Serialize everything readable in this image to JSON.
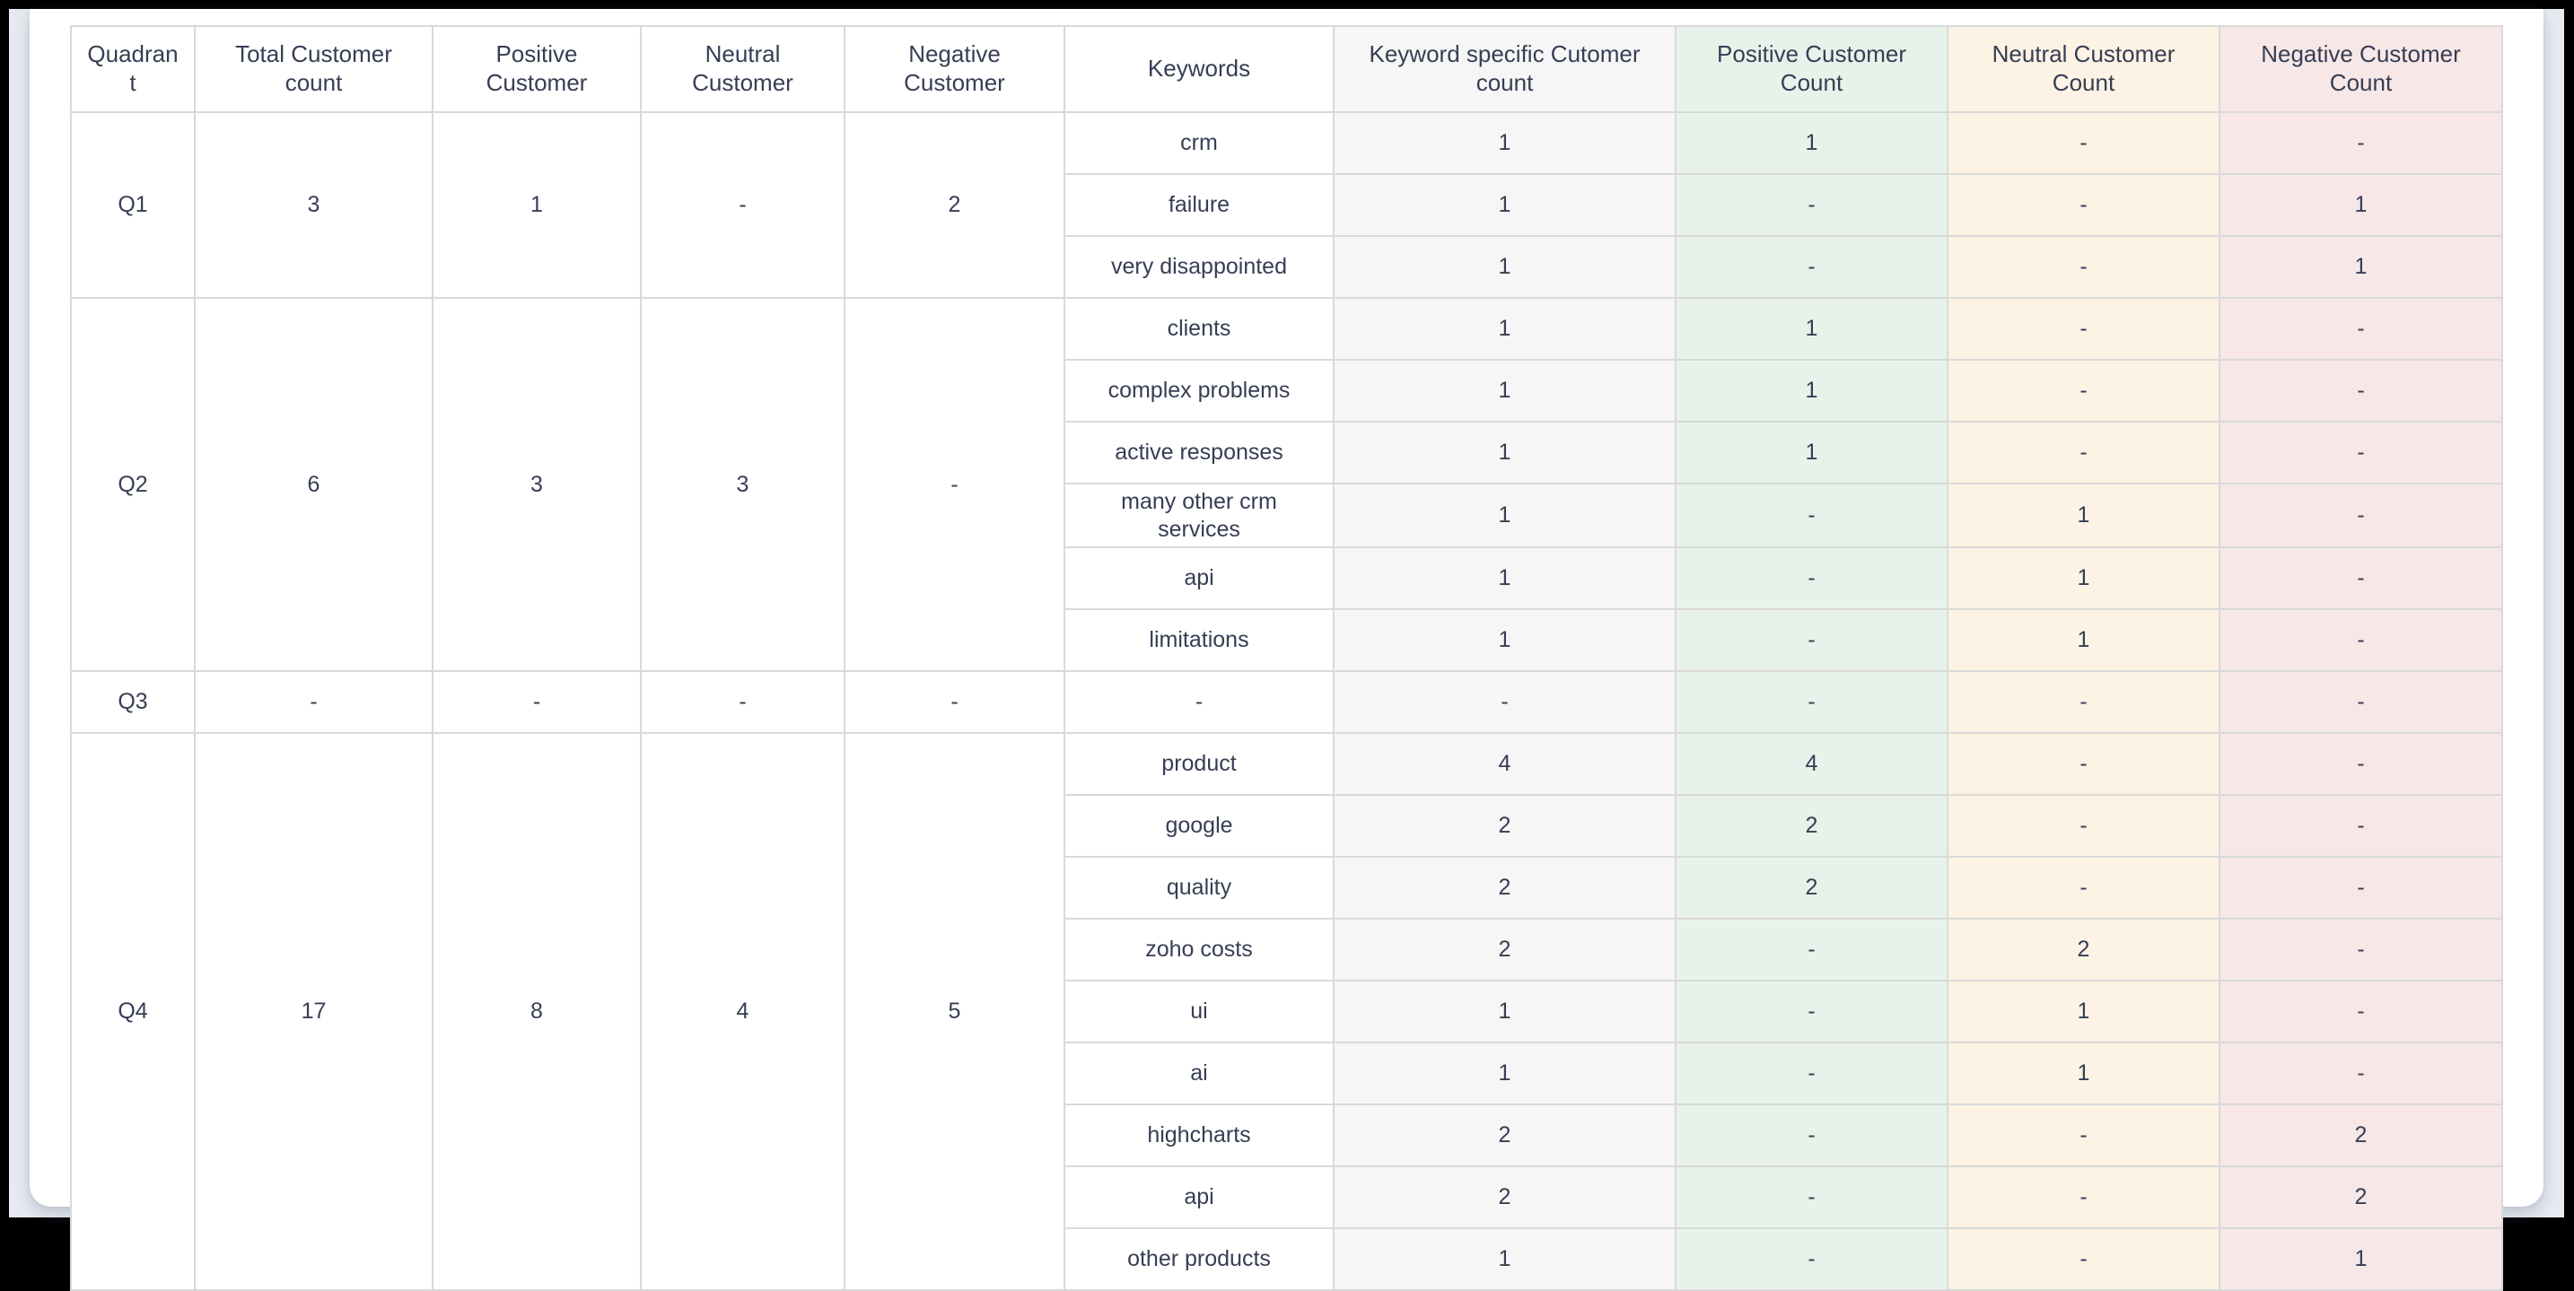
{
  "table": {
    "columns": [
      "Quadrant",
      "Total Customer count",
      "Positive Customer",
      "Neutral Customer",
      "Negative Customer",
      "Keywords",
      "Keyword specific Cutomer count",
      "Positive Customer Count",
      "Neutral Customer Count",
      "Negative Customer Count"
    ],
    "colors": {
      "keyword_count_bg": "#f6f6f6",
      "positive_bg": "#e7f3ea",
      "neutral_bg": "#fcf3e4",
      "negative_bg": "#f8e7e7",
      "text": "#363e54",
      "border": "#d9d9d9"
    },
    "quadrants": [
      {
        "quadrant": "Q1",
        "total": "3",
        "positive": "1",
        "neutral": "-",
        "negative": "2",
        "keywords": [
          {
            "keyword": "crm",
            "count": "1",
            "positive": "1",
            "neutral": "-",
            "negative": "-"
          },
          {
            "keyword": "failure",
            "count": "1",
            "positive": "-",
            "neutral": "-",
            "negative": "1"
          },
          {
            "keyword": "very disappointed",
            "count": "1",
            "positive": "-",
            "neutral": "-",
            "negative": "1"
          }
        ]
      },
      {
        "quadrant": "Q2",
        "total": "6",
        "positive": "3",
        "neutral": "3",
        "negative": "-",
        "keywords": [
          {
            "keyword": "clients",
            "count": "1",
            "positive": "1",
            "neutral": "-",
            "negative": "-"
          },
          {
            "keyword": "complex problems",
            "count": "1",
            "positive": "1",
            "neutral": "-",
            "negative": "-"
          },
          {
            "keyword": "active responses",
            "count": "1",
            "positive": "1",
            "neutral": "-",
            "negative": "-"
          },
          {
            "keyword": "many other crm services",
            "count": "1",
            "positive": "-",
            "neutral": "1",
            "negative": "-"
          },
          {
            "keyword": "api",
            "count": "1",
            "positive": "-",
            "neutral": "1",
            "negative": "-"
          },
          {
            "keyword": "limitations",
            "count": "1",
            "positive": "-",
            "neutral": "1",
            "negative": "-"
          }
        ]
      },
      {
        "quadrant": "Q3",
        "total": "-",
        "positive": "-",
        "neutral": "-",
        "negative": "-",
        "keywords": [
          {
            "keyword": "-",
            "count": "-",
            "positive": "-",
            "neutral": "-",
            "negative": "-"
          }
        ]
      },
      {
        "quadrant": "Q4",
        "total": "17",
        "positive": "8",
        "neutral": "4",
        "negative": "5",
        "keywords": [
          {
            "keyword": "product",
            "count": "4",
            "positive": "4",
            "neutral": "-",
            "negative": "-"
          },
          {
            "keyword": "google",
            "count": "2",
            "positive": "2",
            "neutral": "-",
            "negative": "-"
          },
          {
            "keyword": "quality",
            "count": "2",
            "positive": "2",
            "neutral": "-",
            "negative": "-"
          },
          {
            "keyword": "zoho costs",
            "count": "2",
            "positive": "-",
            "neutral": "2",
            "negative": "-"
          },
          {
            "keyword": "ui",
            "count": "1",
            "positive": "-",
            "neutral": "1",
            "negative": "-"
          },
          {
            "keyword": "ai",
            "count": "1",
            "positive": "-",
            "neutral": "1",
            "negative": "-"
          },
          {
            "keyword": "highcharts",
            "count": "2",
            "positive": "-",
            "neutral": "-",
            "negative": "2"
          },
          {
            "keyword": "api",
            "count": "2",
            "positive": "-",
            "neutral": "-",
            "negative": "2"
          },
          {
            "keyword": "other products",
            "count": "1",
            "positive": "-",
            "neutral": "-",
            "negative": "1"
          }
        ]
      }
    ]
  }
}
